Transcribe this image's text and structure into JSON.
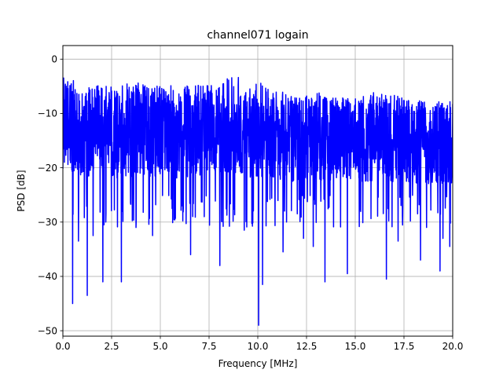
{
  "chart_data": {
    "type": "line",
    "title": "channel071 logain",
    "xlabel": "Frequency [MHz]",
    "ylabel": "PSD [dB]",
    "xlim": [
      0,
      20
    ],
    "ylim": [
      -51,
      2.5
    ],
    "xticks": [
      0,
      2.5,
      5,
      7.5,
      10,
      12.5,
      15,
      17.5,
      20
    ],
    "xtick_labels": [
      "0.0",
      "2.5",
      "5.0",
      "7.5",
      "10.0",
      "12.5",
      "15.0",
      "17.5",
      "20.0"
    ],
    "yticks": [
      0,
      -10,
      -20,
      -30,
      -40,
      -50
    ],
    "ytick_labels": [
      "0",
      "−10",
      "−20",
      "−30",
      "−40",
      "−50"
    ],
    "grid": true,
    "series": [
      {
        "color": "#0000ff",
        "sample_count": 2000,
        "upper_envelope_db": [
          [
            0.0,
            -0.5
          ],
          [
            0.3,
            -1.5
          ],
          [
            0.6,
            -3.5
          ],
          [
            1.0,
            -5.0
          ],
          [
            2.0,
            -4.0
          ],
          [
            3.0,
            -5.0
          ],
          [
            4.0,
            -3.5
          ],
          [
            5.0,
            -4.5
          ],
          [
            6.0,
            -5.0
          ],
          [
            7.0,
            -4.0
          ],
          [
            8.0,
            -3.5
          ],
          [
            8.7,
            -2.0
          ],
          [
            9.5,
            -4.5
          ],
          [
            10.0,
            -4.0
          ],
          [
            11.0,
            -5.5
          ],
          [
            12.0,
            -7.0
          ],
          [
            13.0,
            -6.0
          ],
          [
            14.0,
            -7.0
          ],
          [
            15.0,
            -7.0
          ],
          [
            16.0,
            -6.0
          ],
          [
            17.0,
            -6.5
          ],
          [
            18.0,
            -7.5
          ],
          [
            19.0,
            -8.0
          ],
          [
            20.0,
            -7.0
          ]
        ],
        "deep_nulls": [
          [
            0.5,
            -45.0
          ],
          [
            0.8,
            -33.5
          ],
          [
            1.25,
            -43.5
          ],
          [
            1.55,
            -32.5
          ],
          [
            2.05,
            -41.0
          ],
          [
            2.2,
            -30.0
          ],
          [
            3.0,
            -41.0
          ],
          [
            3.75,
            -31.0
          ],
          [
            4.6,
            -32.5
          ],
          [
            5.6,
            -27.5
          ],
          [
            6.55,
            -36.0
          ],
          [
            7.25,
            -29.0
          ],
          [
            8.05,
            -38.0
          ],
          [
            9.3,
            -31.5
          ],
          [
            10.05,
            -49.0
          ],
          [
            10.25,
            -41.5
          ],
          [
            11.3,
            -35.5
          ],
          [
            12.35,
            -33.0
          ],
          [
            12.85,
            -34.5
          ],
          [
            13.45,
            -41.0
          ],
          [
            14.6,
            -39.5
          ],
          [
            16.6,
            -40.5
          ],
          [
            17.2,
            -33.5
          ],
          [
            18.35,
            -37.0
          ],
          [
            19.35,
            -39.0
          ],
          [
            19.5,
            -33.0
          ],
          [
            19.85,
            -34.5
          ]
        ],
        "typical_range_db": [
          -22,
          -6
        ]
      }
    ]
  }
}
